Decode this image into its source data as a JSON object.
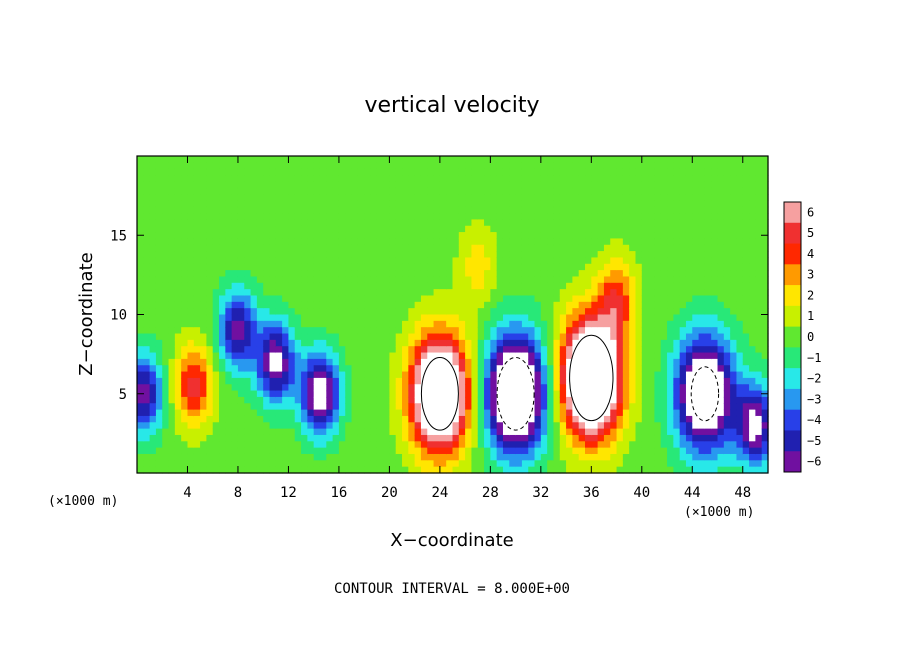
{
  "chart_data": {
    "type": "heatmap",
    "title": "vertical velocity",
    "xlabel": "X−coordinate",
    "ylabel": "Z−coordinate",
    "x_unit_label": "(×1000 m)",
    "z_unit_label": "(×1000 m)",
    "xlim": [
      0,
      50
    ],
    "ylim": [
      0,
      20
    ],
    "xticks": [
      4,
      8,
      12,
      16,
      20,
      24,
      28,
      32,
      36,
      40,
      44,
      48
    ],
    "xtick_labels": [
      "4",
      "8",
      "12",
      "16",
      "20",
      "24",
      "28",
      "32",
      "36",
      "40",
      "44",
      "48"
    ],
    "yticks": [
      5,
      10,
      15
    ],
    "ytick_labels": [
      "5",
      "10",
      "15"
    ],
    "colorbar": {
      "levels": [
        6,
        5,
        4,
        3,
        2,
        1,
        0,
        -1,
        -2,
        -3,
        -4,
        -5,
        -6
      ],
      "labels": [
        "6",
        "5",
        "4",
        "3",
        "2",
        "1",
        "0",
        "−1",
        "−2",
        "−3",
        "−4",
        "−5",
        "−6"
      ],
      "colors": [
        "#f6a0a0",
        "#f03030",
        "#ff2800",
        "#ff9a00",
        "#ffe600",
        "#c8f000",
        "#60e830",
        "#28e878",
        "#28e8e8",
        "#2898f0",
        "#2840e8",
        "#2020b0",
        "#7010a0"
      ]
    },
    "contour_interval_text": "CONTOUR INTERVAL = 8.000E+00",
    "features": [
      {
        "kind": "updraft",
        "x": 24,
        "z": 5,
        "peak": 12
      },
      {
        "kind": "updraft",
        "x": 36,
        "z": 6,
        "peak": 14
      },
      {
        "kind": "updraft",
        "x": 4.5,
        "z": 5.5,
        "peak": 5
      },
      {
        "kind": "updraft",
        "x": 38,
        "z": 11,
        "peak": 4
      },
      {
        "kind": "updraft",
        "x": 27,
        "z": 13,
        "peak": 2
      },
      {
        "kind": "downdraft",
        "x": 30,
        "z": 5,
        "peak": -12
      },
      {
        "kind": "downdraft",
        "x": 45,
        "z": 5,
        "peak": -10
      },
      {
        "kind": "downdraft",
        "x": 8,
        "z": 9,
        "peak": -6
      },
      {
        "kind": "downdraft",
        "x": 11,
        "z": 7,
        "peak": -7
      },
      {
        "kind": "downdraft",
        "x": 14.5,
        "z": 5,
        "peak": -8
      },
      {
        "kind": "downdraft",
        "x": 49,
        "z": 3,
        "peak": -7
      },
      {
        "kind": "downdraft",
        "x": 0.5,
        "z": 5,
        "peak": -6
      }
    ]
  }
}
